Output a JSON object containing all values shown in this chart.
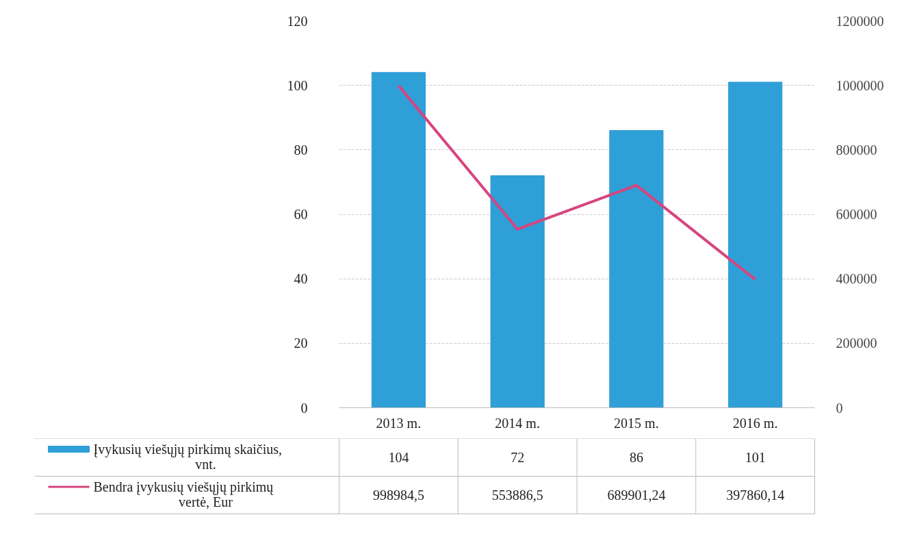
{
  "chart_data": {
    "type": "bar",
    "categories": [
      "2013 m.",
      "2014 m.",
      "2015 m.",
      "2016 m."
    ],
    "series": [
      {
        "name": "Įvykusių viešųjų pirkimų skaičius, vnt.",
        "color": "#2f9fd8",
        "values": [
          104,
          72,
          86,
          101
        ],
        "value_labels": [
          "104",
          "72",
          "86",
          "101"
        ]
      },
      {
        "name": "Bendra įvykusių viešųjų pirkimų vertė, Eur",
        "type": "line",
        "axis": "y2",
        "color": "#d6457f",
        "values": [
          998984.5,
          553886.5,
          689901.24,
          397860.14
        ],
        "value_labels": [
          "998984,5",
          "553886,5",
          "689901,24",
          "397860,14"
        ]
      }
    ],
    "ylim": [
      0,
      120
    ],
    "yticks": [
      0,
      20,
      40,
      60,
      80,
      100,
      120
    ],
    "y2lim": [
      0,
      1200000
    ],
    "y2ticks": [
      0,
      200000,
      400000,
      600000,
      800000,
      1000000,
      1200000
    ],
    "grid": "y",
    "legend": "bottom"
  }
}
